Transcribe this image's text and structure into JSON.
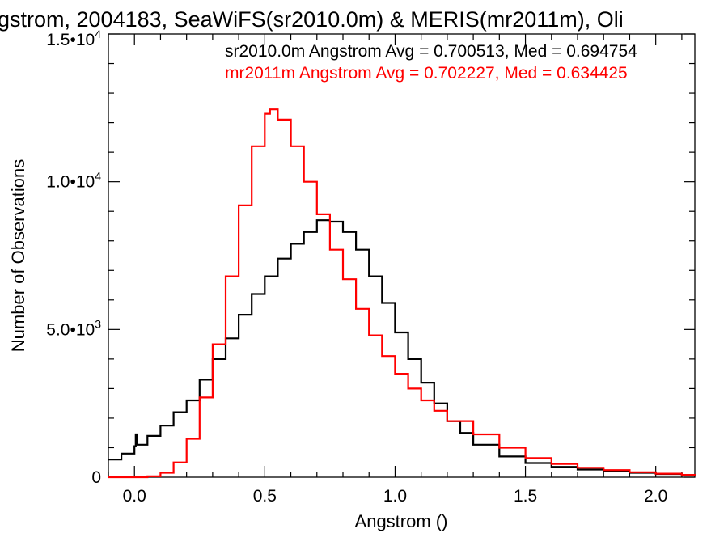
{
  "chart_data": {
    "type": "line",
    "title": "gstrom, 2004183, SeaWiFS(sr2010.0m) & MERIS(mr2011m), Oli",
    "xlabel": "Angstrom ()",
    "ylabel": "Number of Observations",
    "xlim": [
      -0.1,
      2.15
    ],
    "ylim": [
      0,
      15000
    ],
    "x_ticks": [
      {
        "value": 0.0,
        "label": "0.0"
      },
      {
        "value": 0.5,
        "label": "0.5"
      },
      {
        "value": 1.0,
        "label": "1.0"
      },
      {
        "value": 1.5,
        "label": "1.5"
      },
      {
        "value": 2.0,
        "label": "2.0"
      }
    ],
    "y_ticks": [
      {
        "value": 0,
        "mant": "0",
        "exp": ""
      },
      {
        "value": 5000,
        "mant": "5.0•10",
        "exp": "3"
      },
      {
        "value": 10000,
        "mant": "1.0•10",
        "exp": "4"
      },
      {
        "value": 15000,
        "mant": "1.5•10",
        "exp": "4"
      }
    ],
    "step": true,
    "grid": false,
    "annotations": [
      {
        "text": "sr2010.0m Angstrom Avg = 0.700513, Med = 0.694754",
        "color": "#000000"
      },
      {
        "text": "mr2011m Angstrom Avg = 0.702227, Med = 0.634425",
        "color": "#ff0000"
      }
    ],
    "series": [
      {
        "color": "#000000",
        "x": [
          -0.1,
          -0.05,
          0.0,
          0.005,
          0.01,
          0.05,
          0.1,
          0.15,
          0.2,
          0.25,
          0.3,
          0.35,
          0.4,
          0.45,
          0.5,
          0.55,
          0.6,
          0.65,
          0.7,
          0.75,
          0.8,
          0.85,
          0.9,
          0.95,
          1.0,
          1.05,
          1.1,
          1.15,
          1.2,
          1.25,
          1.3,
          1.4,
          1.5,
          1.6,
          1.7,
          1.8,
          1.9,
          2.0,
          2.1,
          2.15
        ],
        "values": [
          600,
          800,
          1050,
          1450,
          1100,
          1400,
          1750,
          2200,
          2600,
          3300,
          4000,
          4700,
          5500,
          6200,
          6800,
          7400,
          7900,
          8300,
          8700,
          8650,
          8300,
          7700,
          6800,
          5900,
          4900,
          4000,
          3200,
          2500,
          1900,
          1500,
          1100,
          700,
          480,
          350,
          260,
          200,
          150,
          110,
          80,
          60
        ]
      },
      {
        "color": "#ff0000",
        "x": [
          -0.1,
          0.0,
          0.05,
          0.1,
          0.15,
          0.2,
          0.25,
          0.3,
          0.35,
          0.4,
          0.45,
          0.5,
          0.52,
          0.55,
          0.6,
          0.65,
          0.7,
          0.75,
          0.8,
          0.85,
          0.9,
          0.95,
          1.0,
          1.05,
          1.1,
          1.15,
          1.2,
          1.3,
          1.4,
          1.5,
          1.6,
          1.7,
          1.8,
          1.9,
          2.0,
          2.1,
          2.15
        ],
        "values": [
          0,
          0,
          30,
          150,
          500,
          1300,
          2700,
          4500,
          6800,
          9200,
          11200,
          12300,
          12450,
          12100,
          11200,
          10000,
          8900,
          7700,
          6700,
          5700,
          4800,
          4100,
          3500,
          3000,
          2600,
          2250,
          1900,
          1450,
          1000,
          650,
          450,
          320,
          240,
          170,
          120,
          80,
          60
        ]
      }
    ]
  }
}
